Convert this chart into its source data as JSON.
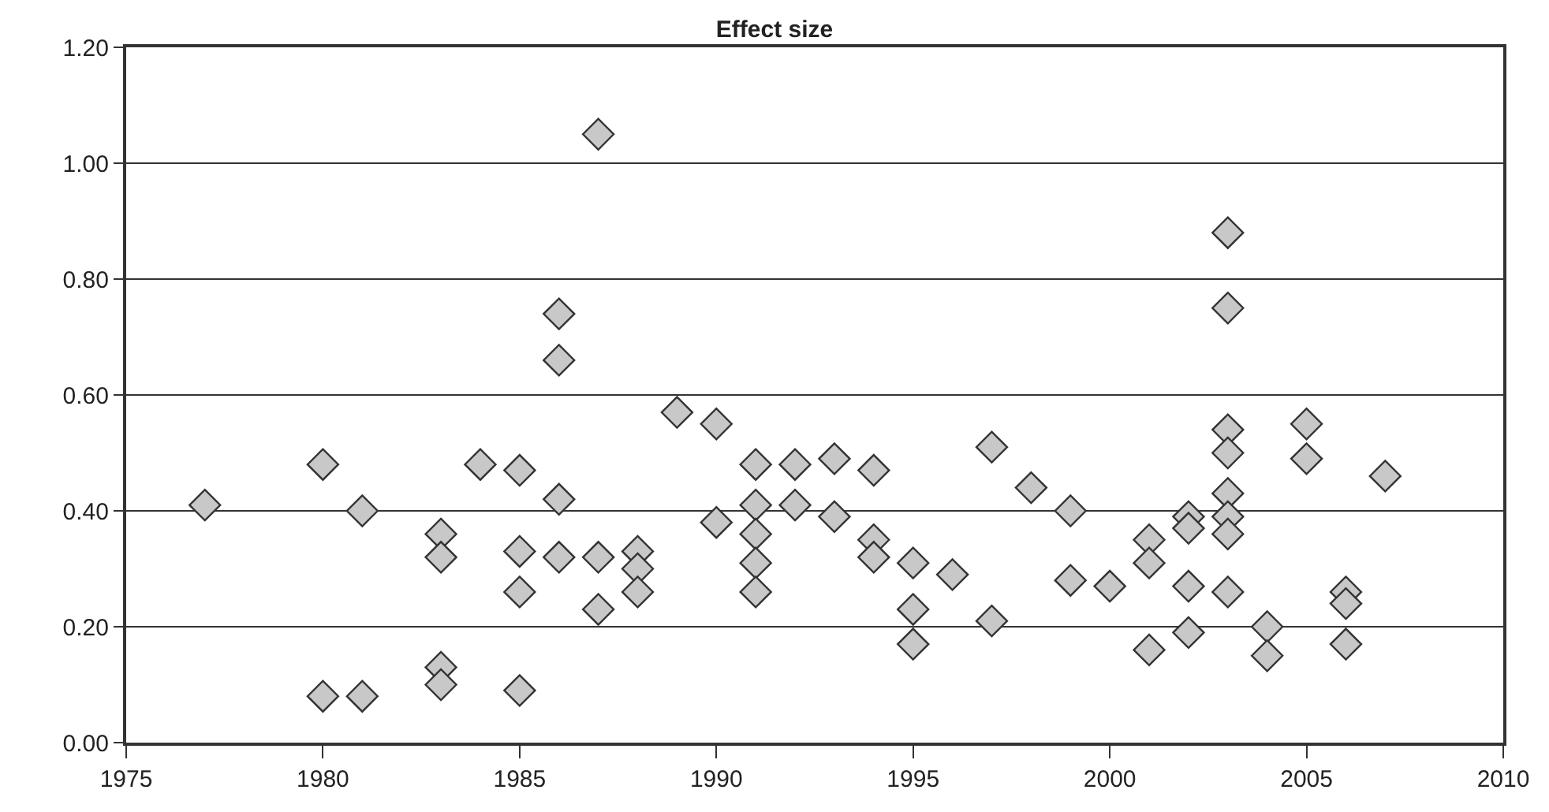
{
  "chart_data": {
    "type": "scatter",
    "title": "Effect size",
    "marker": "diamond",
    "grid": "y",
    "xlim": [
      1975,
      2010
    ],
    "xticks": [
      1975,
      1980,
      1985,
      1990,
      1995,
      2000,
      2005,
      2010
    ],
    "ylim": [
      0,
      1.2
    ],
    "yticks": [
      {
        "value": 0,
        "label": "0.00"
      },
      {
        "value": 0.2,
        "label": "0.20"
      },
      {
        "value": 0.4,
        "label": "0.40"
      },
      {
        "value": 0.6,
        "label": "0.60"
      },
      {
        "value": 0.8,
        "label": "0.80"
      },
      {
        "value": 1.0,
        "label": "1.00"
      },
      {
        "value": 1.2,
        "label": "1.20"
      }
    ],
    "series": [
      {
        "color": "#c8c8c8",
        "x": [
          1977,
          1980,
          1980,
          1981,
          1981,
          1983,
          1983,
          1983,
          1983,
          1984,
          1985,
          1985,
          1985,
          1985,
          1986,
          1986,
          1986,
          1986,
          1987,
          1987,
          1987,
          1988,
          1988,
          1988,
          1989,
          1990,
          1990,
          1991,
          1991,
          1991,
          1991,
          1991,
          1992,
          1992,
          1993,
          1993,
          1994,
          1994,
          1994,
          1995,
          1995,
          1995,
          1996,
          1997,
          1997,
          1998,
          1999,
          1999,
          2000,
          2001,
          2001,
          2001,
          2002,
          2002,
          2002,
          2002,
          2003,
          2003,
          2003,
          2003,
          2003,
          2003,
          2003,
          2003,
          2004,
          2004,
          2005,
          2005,
          2006,
          2006,
          2006,
          2007
        ],
        "values": [
          0.41,
          0.48,
          0.08,
          0.4,
          0.08,
          0.36,
          0.32,
          0.13,
          0.1,
          0.48,
          0.47,
          0.33,
          0.26,
          0.09,
          0.74,
          0.66,
          0.42,
          0.32,
          1.05,
          0.32,
          0.23,
          0.33,
          0.3,
          0.26,
          0.57,
          0.55,
          0.38,
          0.48,
          0.41,
          0.36,
          0.31,
          0.26,
          0.48,
          0.41,
          0.49,
          0.39,
          0.47,
          0.35,
          0.32,
          0.31,
          0.23,
          0.17,
          0.29,
          0.51,
          0.21,
          0.44,
          0.4,
          0.28,
          0.27,
          0.35,
          0.31,
          0.16,
          0.39,
          0.37,
          0.27,
          0.19,
          0.88,
          0.75,
          0.54,
          0.5,
          0.43,
          0.39,
          0.36,
          0.26,
          0.2,
          0.15,
          0.55,
          0.49,
          0.26,
          0.24,
          0.17,
          0.46
        ]
      }
    ]
  }
}
